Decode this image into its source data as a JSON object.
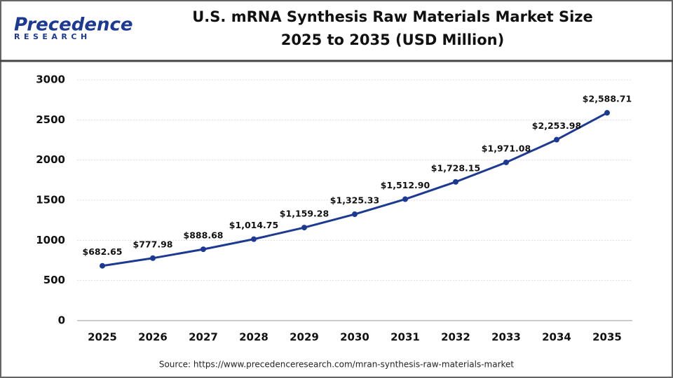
{
  "logo": {
    "name": "Precedence",
    "tagline": "RESEARCH"
  },
  "chart_data": {
    "type": "line",
    "title": "U.S. mRNA Synthesis Raw Materials Market Size",
    "subtitle": "2025 to 2035 (USD Million)",
    "categories": [
      "2025",
      "2026",
      "2027",
      "2028",
      "2029",
      "2030",
      "2031",
      "2032",
      "2033",
      "2034",
      "2035"
    ],
    "values": [
      682.65,
      777.98,
      888.68,
      1014.75,
      1159.28,
      1325.33,
      1512.9,
      1728.15,
      1971.08,
      2253.98,
      2588.71
    ],
    "value_labels": [
      "$682.65",
      "$777.98",
      "$888.68",
      "$1,014.75",
      "$1,159.28",
      "$1,325.33",
      "$1,512.90",
      "$1,728.15",
      "$1,971.08",
      "$2,253.98",
      "$2,588.71"
    ],
    "color": "#1c3a92",
    "ylim": [
      0,
      3000
    ],
    "yticks": [
      0,
      500,
      1000,
      1500,
      2000,
      2500,
      3000
    ],
    "grid": true,
    "source": "Source: https://www.precedenceresearch.com/mran-synthesis-raw-materials-market"
  }
}
